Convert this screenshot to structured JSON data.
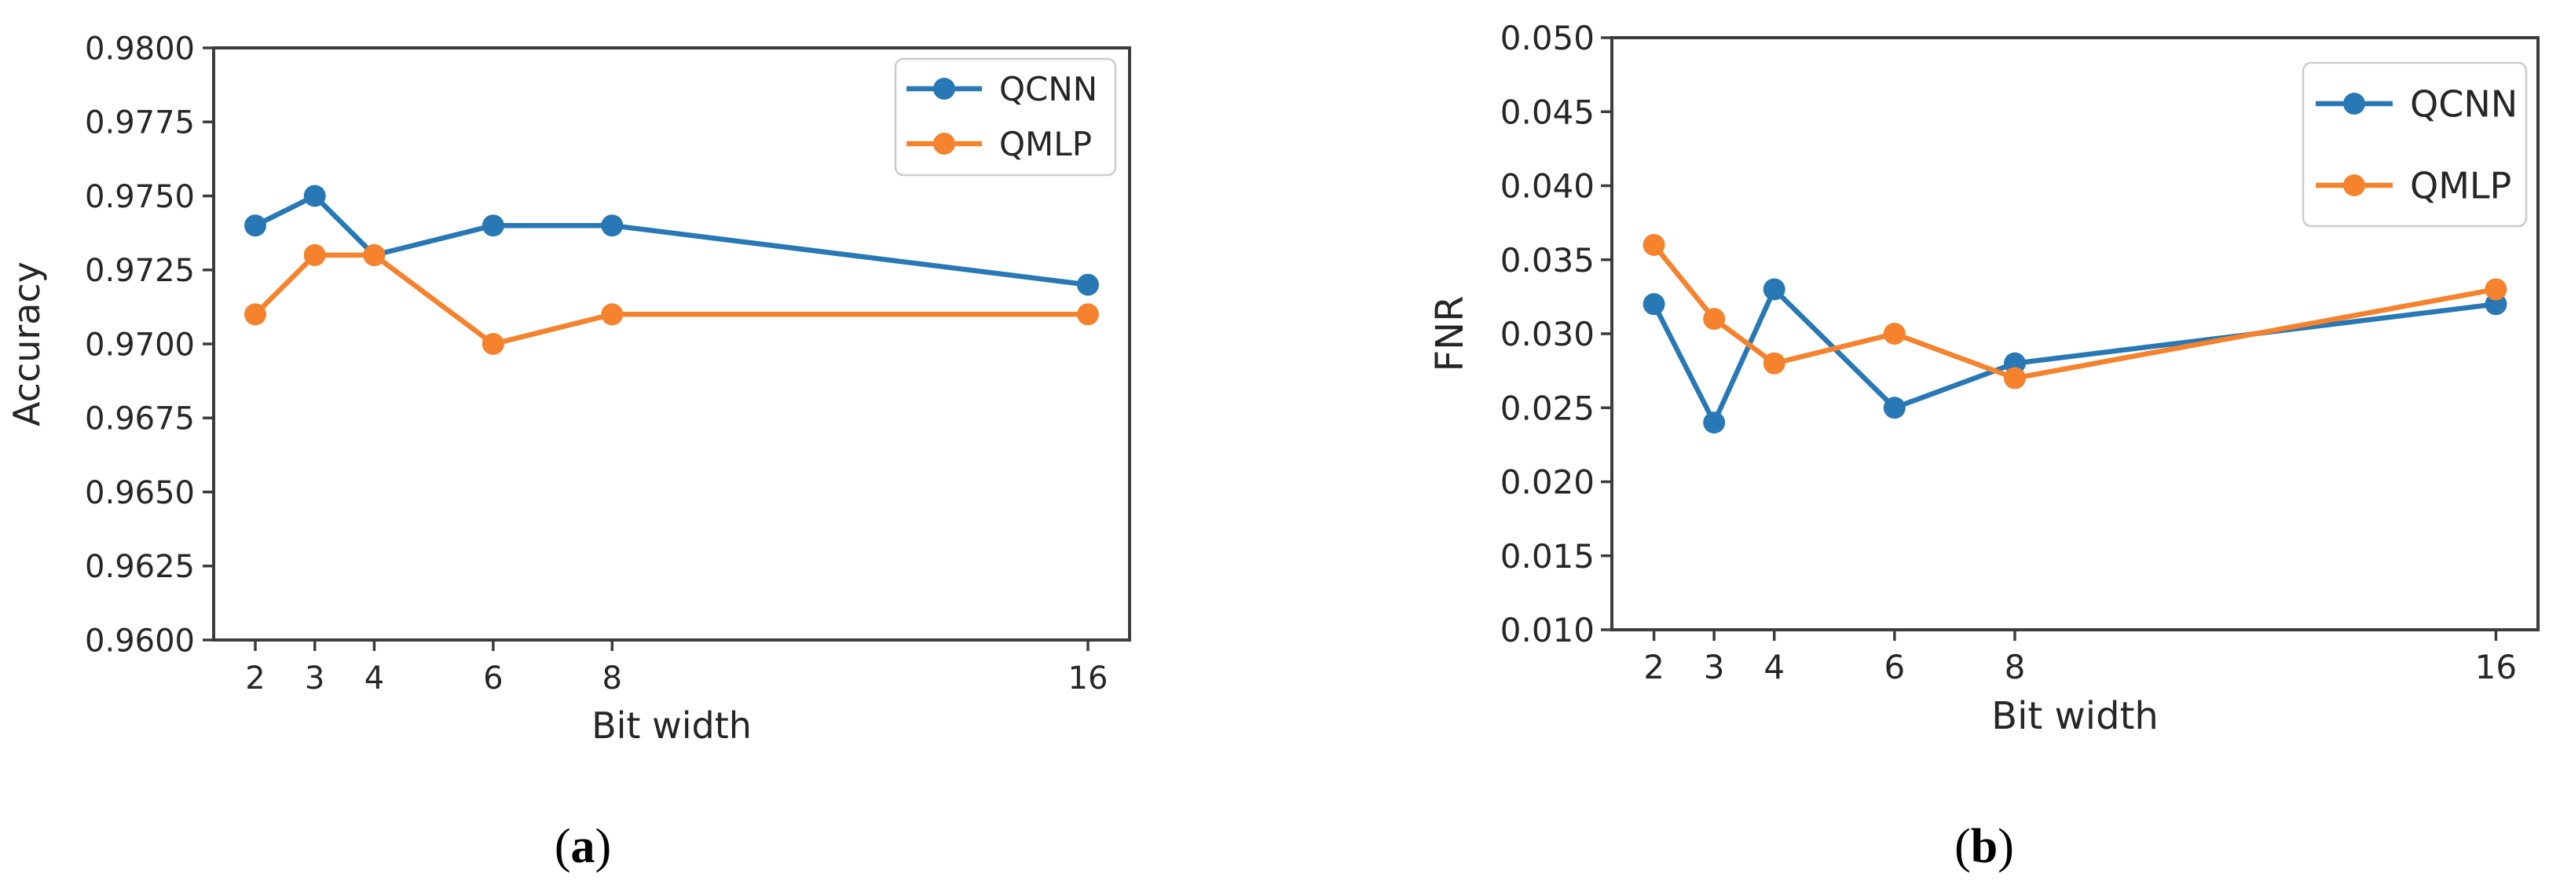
{
  "page": {
    "background": "#ffffff"
  },
  "style": {
    "axis_color": "#3c3c3c",
    "text_color": "#262626",
    "legend_border": "#cccccc",
    "legend_fill": "#ffffff",
    "qcnn_color": "#2878b5",
    "qmlp_color": "#f5822d"
  },
  "chart_data": [
    {
      "type": "line",
      "panel": "a",
      "caption_prefix": "(",
      "caption_letter": "a",
      "caption_suffix": ")",
      "xlabel": "Bit width",
      "ylabel": "Accuracy",
      "x": [
        2,
        3,
        4,
        6,
        8,
        16
      ],
      "x_tick_labels": [
        "2",
        "3",
        "4",
        "6",
        "8",
        "16"
      ],
      "xlim": [
        1.3,
        16.7
      ],
      "ylim": [
        0.96,
        0.98
      ],
      "y_ticks": [
        0.96,
        0.9625,
        0.965,
        0.9675,
        0.97,
        0.9725,
        0.975,
        0.9775,
        0.98
      ],
      "y_tick_labels": [
        "0.9600",
        "0.9625",
        "0.9650",
        "0.9675",
        "0.9700",
        "0.9725",
        "0.9750",
        "0.9775",
        "0.9800"
      ],
      "grid": false,
      "legend_position": "upper right",
      "legend_entries": [
        "QCNN",
        "QMLP"
      ],
      "series": [
        {
          "name": "QCNN",
          "color": "#2878b5",
          "marker": "o",
          "values": [
            0.974,
            0.975,
            0.973,
            0.974,
            0.974,
            0.972
          ]
        },
        {
          "name": "QMLP",
          "color": "#f5822d",
          "marker": "o",
          "values": [
            0.971,
            0.973,
            0.973,
            0.97,
            0.971,
            0.971
          ]
        }
      ]
    },
    {
      "type": "line",
      "panel": "b",
      "caption_prefix": "(",
      "caption_letter": "b",
      "caption_suffix": ")",
      "xlabel": "Bit width",
      "ylabel": "FNR",
      "x": [
        2,
        3,
        4,
        6,
        8,
        16
      ],
      "x_tick_labels": [
        "2",
        "3",
        "4",
        "6",
        "8",
        "16"
      ],
      "xlim": [
        1.3,
        16.7
      ],
      "ylim": [
        0.01,
        0.05
      ],
      "y_ticks": [
        0.01,
        0.015,
        0.02,
        0.025,
        0.03,
        0.035,
        0.04,
        0.045,
        0.05
      ],
      "y_tick_labels": [
        "0.010",
        "0.015",
        "0.020",
        "0.025",
        "0.030",
        "0.035",
        "0.040",
        "0.045",
        "0.050"
      ],
      "grid": false,
      "legend_position": "upper right",
      "legend_entries": [
        "QCNN",
        "QMLP"
      ],
      "series": [
        {
          "name": "QCNN",
          "color": "#2878b5",
          "marker": "o",
          "values": [
            0.032,
            0.024,
            0.033,
            0.025,
            0.028,
            0.032
          ]
        },
        {
          "name": "QMLP",
          "color": "#f5822d",
          "marker": "o",
          "values": [
            0.036,
            0.031,
            0.028,
            0.03,
            0.027,
            0.033
          ]
        }
      ]
    }
  ]
}
